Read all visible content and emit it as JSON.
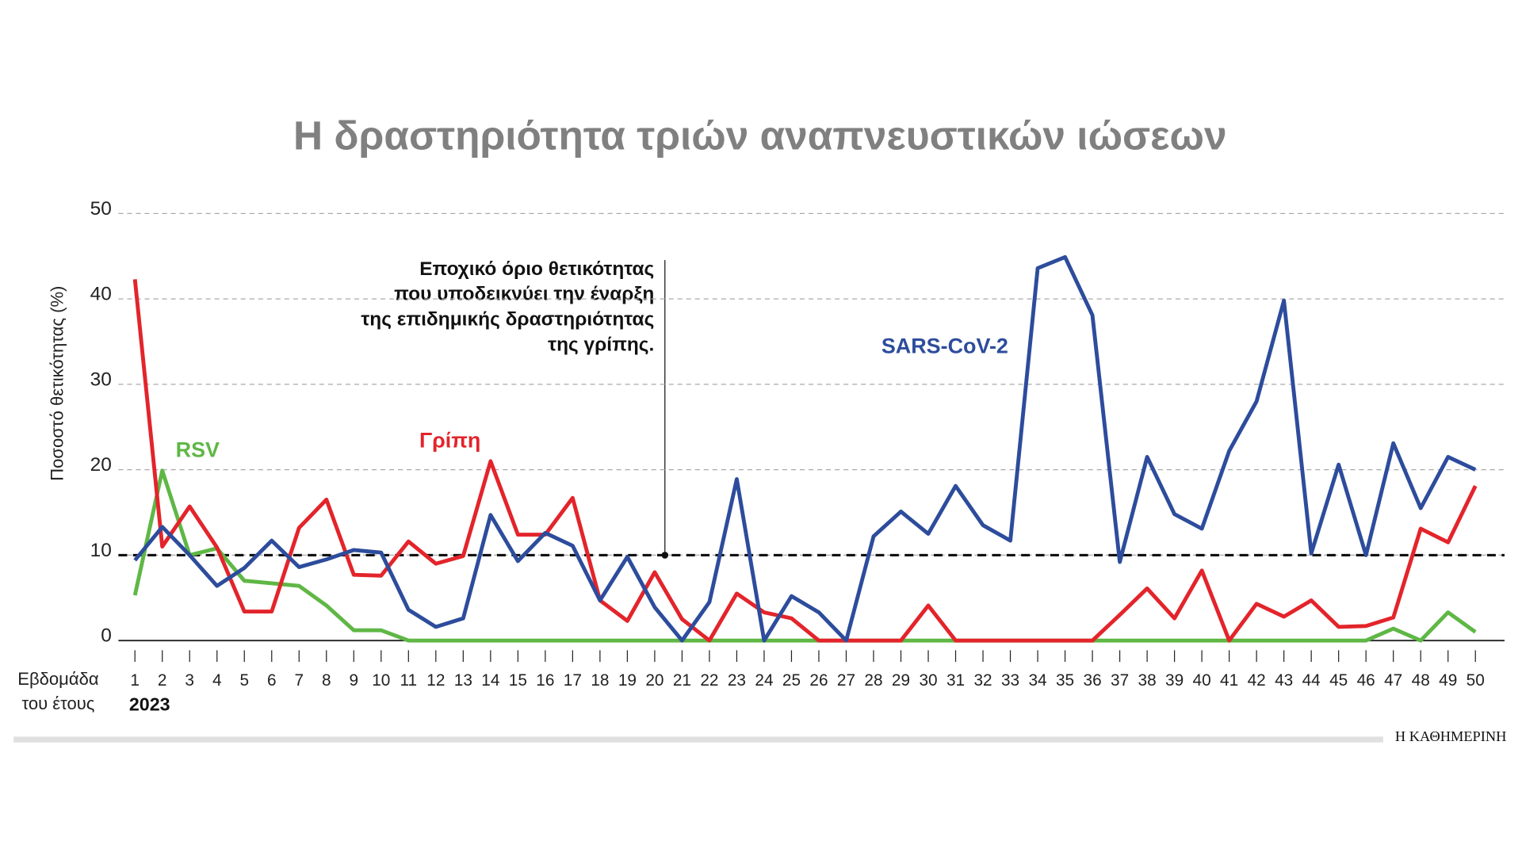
{
  "chart_data": {
    "type": "line",
    "title": "Η δραστηριότητα τριών αναπνευστικών ιώσεων",
    "y_label": "Ποσοστό θετικότητας (%)",
    "x_label": [
      "Εβδομάδα",
      "του έτους"
    ],
    "x_sublabel": "2023",
    "annotation": [
      "Εποχικό όριο θετικότητας",
      "που υποδεικνύει την έναρξη",
      "της επιδημικής δραστηριότητας",
      "της γρίπης."
    ],
    "threshold": 10,
    "source": "Η ΚΑΘΗΜΕΡΙΝΗ",
    "x": [
      1,
      2,
      3,
      4,
      5,
      6,
      7,
      8,
      9,
      10,
      11,
      12,
      13,
      14,
      15,
      16,
      17,
      18,
      19,
      20,
      21,
      22,
      23,
      24,
      25,
      26,
      27,
      28,
      29,
      30,
      31,
      32,
      33,
      34,
      35,
      36,
      37,
      38,
      39,
      40,
      41,
      42,
      43,
      44,
      45,
      46,
      47,
      48,
      49,
      50
    ],
    "xlim": [
      1,
      50
    ],
    "xticks": [
      1,
      2,
      3,
      4,
      5,
      6,
      7,
      8,
      9,
      10,
      11,
      12,
      13,
      14,
      15,
      16,
      17,
      18,
      19,
      20,
      21,
      22,
      23,
      24,
      25,
      26,
      27,
      28,
      29,
      30,
      31,
      32,
      33,
      34,
      35,
      36,
      37,
      38,
      39,
      40,
      41,
      42,
      43,
      44,
      45,
      46,
      47,
      48,
      49,
      50
    ],
    "ylim": [
      0,
      50
    ],
    "yticks": [
      0,
      10,
      20,
      30,
      40,
      50
    ],
    "grid": true,
    "series": [
      {
        "name": "SARS-CoV-2",
        "color": "#2d4c9c",
        "values": [
          9.4,
          13.3,
          10,
          6.4,
          8.5,
          11.7,
          8.6,
          9.5,
          10.6,
          10.3,
          3.6,
          1.6,
          2.6,
          14.7,
          9.3,
          12.6,
          11.1,
          4.7,
          9.8,
          3.9,
          0,
          4.5,
          18.9,
          0,
          5.2,
          3.3,
          0,
          12.2,
          15.1,
          12.5,
          18.1,
          13.5,
          11.7,
          43.6,
          44.9,
          38.1,
          9.2,
          21.5,
          14.8,
          13.1,
          22.2,
          28,
          39.8,
          10.2,
          20.6,
          10,
          23.1,
          15.5,
          21.5,
          20
        ]
      },
      {
        "name": "Γρίπη",
        "color": "#e3242b",
        "values": [
          42.3,
          11,
          15.7,
          10.9,
          3.4,
          3.4,
          13.2,
          16.5,
          7.7,
          7.6,
          11.6,
          9,
          9.9,
          21,
          12.4,
          12.4,
          16.7,
          4.7,
          2.3,
          8,
          2.5,
          0,
          5.5,
          3.3,
          2.6,
          0,
          0,
          0,
          0,
          4.1,
          0,
          0,
          0,
          0,
          0,
          0,
          3,
          6.1,
          2.6,
          8.2,
          0,
          4.3,
          2.8,
          4.7,
          1.6,
          1.7,
          2.7,
          13.1,
          11.5,
          18.1
        ]
      },
      {
        "name": "RSV",
        "color": "#5fb745",
        "values": [
          5.3,
          19.9,
          10,
          10.8,
          7,
          6.7,
          6.4,
          4.1,
          1.2,
          1.2,
          0,
          0,
          0,
          0,
          0,
          0,
          0,
          0,
          0,
          0,
          0,
          0,
          0,
          0,
          0,
          0,
          0,
          0,
          0,
          0,
          0,
          0,
          0,
          0,
          0,
          0,
          0,
          0,
          0,
          0,
          0,
          0,
          0,
          0,
          0,
          0,
          1.4,
          0,
          3.3,
          1
        ]
      }
    ]
  }
}
